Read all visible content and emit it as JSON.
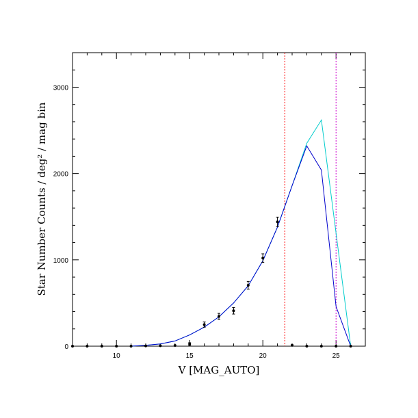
{
  "chart_data": {
    "type": "line",
    "title": "",
    "xlabel": "V [MAG_AUTO]",
    "ylabel": "Star Number Counts / deg² / mag bin",
    "xlim": [
      7,
      27
    ],
    "ylim": [
      0,
      3400
    ],
    "x_ticks": [
      10,
      15,
      20,
      25
    ],
    "y_ticks": [
      0,
      1000,
      2000,
      3000
    ],
    "grid": false,
    "legend": "none",
    "colors": {
      "model_blue": "#0000cc",
      "model_cyan": "#00cccc",
      "vline_red": "#ff0000",
      "vline_magenta": "#cc00cc",
      "points": "#000000"
    },
    "series": [
      {
        "kind": "points_with_errorbars",
        "x": [
          7,
          8,
          9,
          10,
          11,
          12,
          13,
          14,
          15,
          16,
          17,
          18,
          19,
          20,
          21,
          22,
          23,
          24,
          25,
          26
        ],
        "y": [
          0,
          0,
          0,
          0,
          0,
          3,
          5,
          8,
          25,
          250,
          345,
          410,
          705,
          1020,
          1440,
          10,
          0,
          0,
          0,
          0
        ],
        "err": [
          0,
          0,
          0,
          0,
          0,
          0,
          0,
          0,
          15,
          30,
          35,
          38,
          45,
          50,
          55,
          5,
          0,
          0,
          0,
          0
        ]
      },
      {
        "kind": "line",
        "color_key": "model_cyan",
        "x": [
          11,
          12,
          13,
          14,
          15,
          16,
          17,
          18,
          19,
          20,
          21,
          22,
          23,
          24,
          26
        ],
        "y": [
          0,
          10,
          25,
          60,
          130,
          220,
          340,
          500,
          700,
          990,
          1380,
          1860,
          2350,
          2620,
          0
        ]
      },
      {
        "kind": "line",
        "color_key": "model_blue",
        "x": [
          11,
          12,
          13,
          14,
          15,
          16,
          17,
          18,
          19,
          20,
          21,
          22,
          23,
          24,
          25,
          26
        ],
        "y": [
          0,
          10,
          25,
          60,
          130,
          220,
          340,
          500,
          700,
          990,
          1380,
          1860,
          2320,
          2040,
          460,
          0
        ]
      }
    ],
    "vlines": [
      {
        "x": 21.5,
        "color_key": "vline_red"
      },
      {
        "x": 25,
        "color_key": "vline_magenta"
      }
    ]
  }
}
